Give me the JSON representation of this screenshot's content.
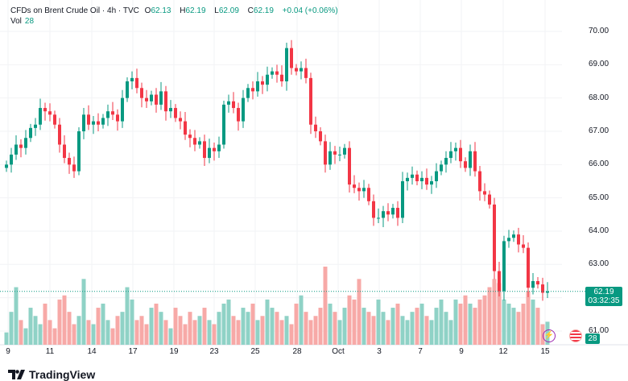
{
  "legend": {
    "symbol": "CFDs on Brent Crude Oil · 4h · TVC",
    "o_label": "O",
    "o": "62.13",
    "h_label": "H",
    "h": "62.19",
    "l_label": "L",
    "l": "62.09",
    "c_label": "C",
    "c": "62.19",
    "change": "+0.04 (+0.06%)",
    "vol_label": "Vol",
    "vol": "28"
  },
  "price_label": {
    "price": "62.19",
    "countdown": "03:32:35"
  },
  "volume_badge": "28",
  "logo": "TradingView",
  "colors": {
    "up": "#089981",
    "down": "#f23645",
    "up_vol": "#8fd2c6",
    "down_vol": "#f7a9a7"
  },
  "chart_data": {
    "type": "candlestick",
    "title": "CFDs on Brent Crude Oil · 4h · TVC",
    "ylim": [
      60.7,
      70.3
    ],
    "y_ticks": [
      "70.00",
      "69.00",
      "68.00",
      "67.00",
      "66.00",
      "65.00",
      "64.00",
      "63.00",
      "61.00"
    ],
    "x_ticks": [
      "9",
      "11",
      "14",
      "17",
      "19",
      "23",
      "25",
      "28",
      "Oct",
      "3",
      "7",
      "9",
      "12",
      "15"
    ],
    "open_first": 65.9,
    "closes": [
      66.0,
      66.3,
      66.6,
      66.5,
      66.8,
      67.1,
      67.2,
      67.7,
      67.6,
      67.5,
      67.2,
      66.6,
      66.2,
      66.0,
      65.8,
      67.0,
      67.5,
      67.2,
      67.3,
      67.2,
      67.4,
      67.6,
      67.5,
      67.3,
      68.0,
      68.5,
      68.6,
      68.3,
      68.0,
      67.9,
      68.1,
      67.8,
      68.2,
      67.6,
      67.7,
      67.4,
      67.3,
      66.9,
      66.8,
      66.6,
      66.7,
      66.2,
      66.5,
      66.4,
      66.6,
      67.8,
      67.9,
      67.7,
      67.3,
      68.0,
      68.3,
      68.2,
      68.5,
      68.4,
      68.7,
      68.8,
      68.7,
      68.5,
      69.5,
      68.9,
      68.8,
      68.9,
      68.6,
      67.2,
      67.0,
      66.7,
      66.0,
      66.4,
      66.3,
      66.3,
      66.5,
      65.4,
      65.3,
      65.2,
      65.3,
      64.9,
      64.4,
      64.4,
      64.6,
      64.5,
      64.7,
      64.4,
      65.5,
      65.6,
      65.7,
      65.5,
      65.6,
      65.4,
      65.5,
      65.8,
      66.0,
      66.2,
      66.4,
      66.5,
      66.1,
      65.9,
      66.4,
      65.8,
      65.2,
      65.1,
      64.8,
      62.8,
      62.2,
      63.7,
      63.8,
      63.9,
      63.6,
      63.5,
      62.3,
      62.5,
      62.4,
      62.15,
      62.19
    ],
    "volumes": [
      15,
      40,
      70,
      30,
      20,
      45,
      35,
      25,
      50,
      30,
      20,
      55,
      60,
      40,
      25,
      35,
      80,
      30,
      25,
      45,
      50,
      30,
      20,
      35,
      40,
      70,
      55,
      30,
      35,
      25,
      45,
      50,
      40,
      30,
      20,
      45,
      35,
      25,
      40,
      30,
      35,
      45,
      30,
      25,
      40,
      50,
      55,
      35,
      30,
      45,
      40,
      50,
      30,
      35,
      55,
      45,
      40,
      30,
      35,
      25,
      50,
      60,
      40,
      30,
      35,
      45,
      95,
      50,
      40,
      30,
      45,
      60,
      55,
      80,
      45,
      40,
      35,
      55,
      40,
      30,
      45,
      50,
      35,
      30,
      40,
      45,
      50,
      35,
      30,
      45,
      55,
      40,
      30,
      55,
      50,
      60,
      50,
      45,
      55,
      60,
      70,
      80,
      75,
      55,
      50,
      45,
      40,
      50,
      65,
      55,
      45,
      25,
      28
    ]
  }
}
